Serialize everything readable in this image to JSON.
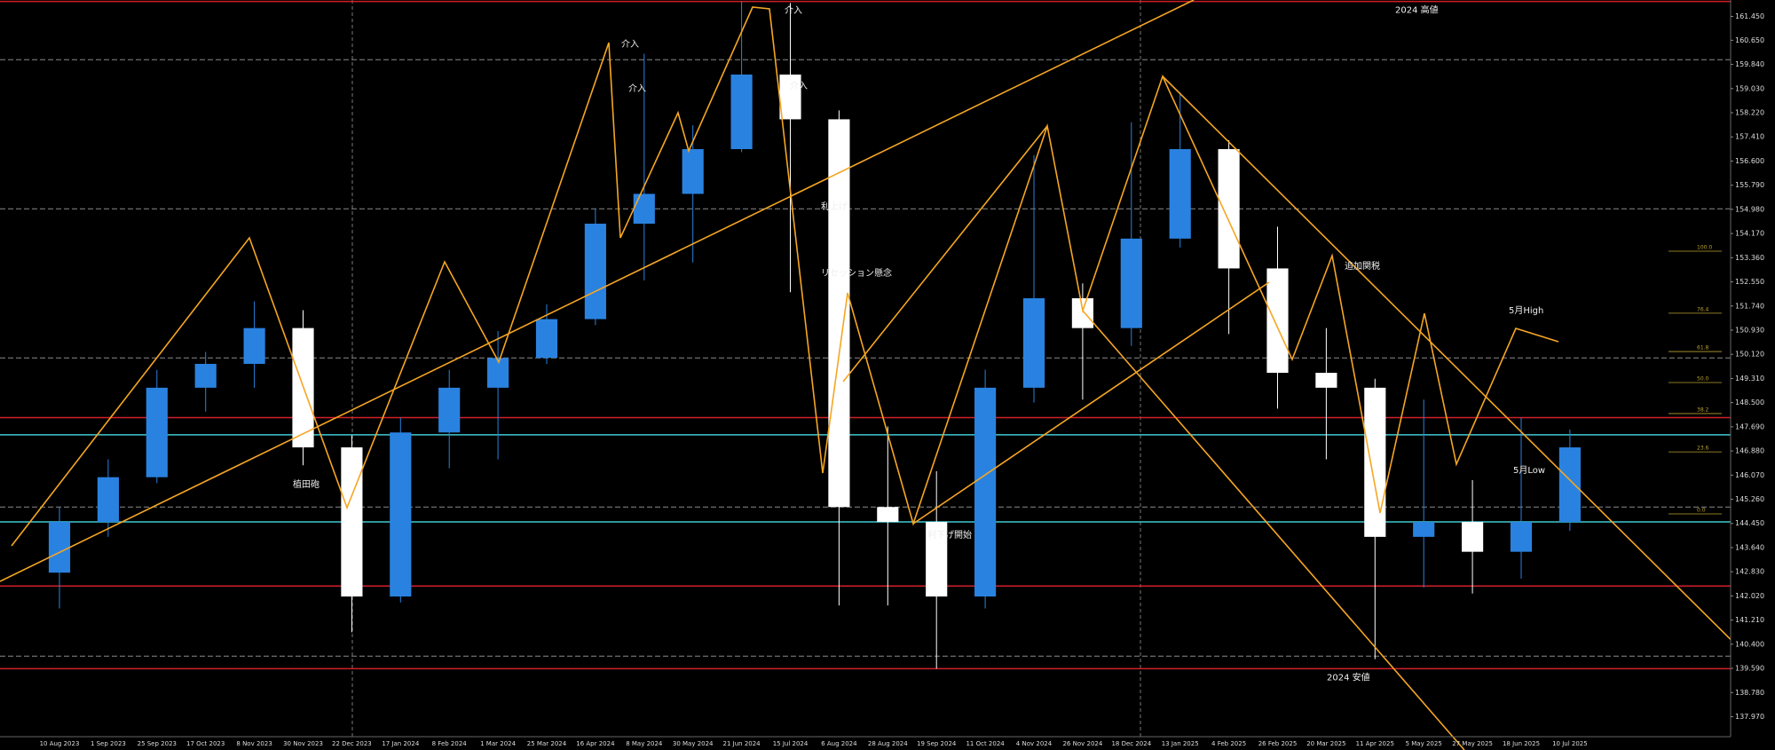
{
  "chart_data": {
    "type": "candlestick",
    "categories": [
      "10 Aug 2023",
      "1 Sep 2023",
      "25 Sep 2023",
      "17 Oct 2023",
      "8 Nov 2023",
      "30 Nov 2023",
      "22 Dec 2023",
      "17 Jan 2024",
      "8 Feb 2024",
      "1 Mar 2024",
      "25 Mar 2024",
      "16 Apr 2024",
      "8 May 2024",
      "30 May 2024",
      "21 Jun 2024",
      "15 Jul 2024",
      "6 Aug 2024",
      "28 Aug 2024",
      "19 Sep 2024",
      "11 Oct 2024",
      "4 Nov 2024",
      "26 Nov 2024",
      "18 Dec 2024",
      "13 Jan 2025",
      "4 Feb 2025",
      "26 Feb 2025",
      "20 Mar 2025",
      "11 Apr 2025",
      "5 May 2025",
      "27 May 2025",
      "18 Jun 2025",
      "10 Jul 2025"
    ],
    "open": [
      142.8,
      144.5,
      146.0,
      149.0,
      149.8,
      151.0,
      147.0,
      142.0,
      147.5,
      149.0,
      150.0,
      151.3,
      154.5,
      155.5,
      157.0,
      159.5,
      158.0,
      145.0,
      144.5,
      142.0,
      149.0,
      152.0,
      151.0,
      154.0,
      157.0,
      153.0,
      149.5,
      149.0,
      144.0,
      144.5,
      143.5,
      144.5
    ],
    "high": [
      145.0,
      146.6,
      149.6,
      150.2,
      151.9,
      151.6,
      147.4,
      148.0,
      149.6,
      150.9,
      151.8,
      155.0,
      160.2,
      157.8,
      161.95,
      161.9,
      158.3,
      147.7,
      146.2,
      149.6,
      156.8,
      152.5,
      157.9,
      158.9,
      157.3,
      154.4,
      151.0,
      149.3,
      148.6,
      145.9,
      148.0,
      147.6
    ],
    "low": [
      141.6,
      144.0,
      145.8,
      148.2,
      149.0,
      146.4,
      140.8,
      141.8,
      146.3,
      146.6,
      149.8,
      151.1,
      152.6,
      153.2,
      156.9,
      152.2,
      141.7,
      141.7,
      139.58,
      141.6,
      148.5,
      148.6,
      150.4,
      153.7,
      150.8,
      148.3,
      146.6,
      139.9,
      142.3,
      142.1,
      142.6,
      144.2
    ],
    "close": [
      144.5,
      146.0,
      149.0,
      149.8,
      151.0,
      147.0,
      142.0,
      147.5,
      149.0,
      150.0,
      151.3,
      154.5,
      155.5,
      157.0,
      159.5,
      158.0,
      145.0,
      144.5,
      142.0,
      149.0,
      152.0,
      151.0,
      154.0,
      157.0,
      153.0,
      149.5,
      149.0,
      144.0,
      144.5,
      143.5,
      144.5,
      147.0
    ],
    "up_color": "#2a82e0",
    "down_color": "#ffffff",
    "ylim": [
      137.3,
      162.0
    ],
    "yticks": [
      {
        "value": 161.45,
        "label": "161.450"
      },
      {
        "value": 160.65,
        "label": "160.650"
      },
      {
        "value": 159.84,
        "label": "159.840"
      },
      {
        "value": 159.03,
        "label": "159.030"
      },
      {
        "value": 158.22,
        "label": "158.220"
      },
      {
        "value": 157.41,
        "label": "157.410"
      },
      {
        "value": 156.6,
        "label": "156.600"
      },
      {
        "value": 155.79,
        "label": "155.790"
      },
      {
        "value": 154.98,
        "label": "154.980"
      },
      {
        "value": 154.17,
        "label": "154.170"
      },
      {
        "value": 153.36,
        "label": "153.360"
      },
      {
        "value": 152.55,
        "label": "152.550"
      },
      {
        "value": 151.74,
        "label": "151.740"
      },
      {
        "value": 150.93,
        "label": "150.930"
      },
      {
        "value": 150.12,
        "label": "150.120"
      },
      {
        "value": 149.31,
        "label": "149.310"
      },
      {
        "value": 148.5,
        "label": "148.500"
      },
      {
        "value": 147.69,
        "label": "147.690"
      },
      {
        "value": 146.88,
        "label": "146.880"
      },
      {
        "value": 146.07,
        "label": "146.070"
      },
      {
        "value": 145.26,
        "label": "145.260"
      },
      {
        "value": 144.45,
        "label": "144.450"
      },
      {
        "value": 143.64,
        "label": "143.640"
      },
      {
        "value": 142.83,
        "label": "142.830"
      },
      {
        "value": 142.02,
        "label": "142.020"
      },
      {
        "value": 141.21,
        "label": "141.210"
      },
      {
        "value": 140.4,
        "label": "140.400"
      },
      {
        "value": 139.59,
        "label": "139.590"
      },
      {
        "value": 138.78,
        "label": "138.780"
      },
      {
        "value": 137.97,
        "label": "137.970"
      }
    ],
    "levels": [
      {
        "name": "2024 高値",
        "value": 161.95,
        "color": "#d0202a",
        "style": "solid"
      },
      {
        "name": "2024 安値",
        "value": 139.58,
        "color": "#d0202a",
        "style": "solid"
      },
      {
        "value": 148.0,
        "color": "#d0202a",
        "style": "solid"
      },
      {
        "value": 147.42,
        "color": "#40c8d0",
        "style": "solid"
      },
      {
        "value": 144.5,
        "color": "#40c8d0",
        "style": "solid"
      },
      {
        "value": 142.35,
        "color": "#d0202a",
        "style": "solid"
      },
      {
        "value": 160,
        "color": "#8a8a8a",
        "style": "dashed"
      },
      {
        "value": 155,
        "color": "#8a8a8a",
        "style": "dashed"
      },
      {
        "value": 150,
        "color": "#8a8a8a",
        "style": "dashed"
      },
      {
        "value": 145,
        "color": "#8a8a8a",
        "style": "dashed"
      },
      {
        "value": 140,
        "color": "#8a8a8a",
        "style": "dashed"
      }
    ],
    "annotations": [
      "介入",
      "介入",
      "介入",
      "介入",
      "利上げ",
      "リセッション懸念",
      "追加関税",
      "利下げ開始",
      "植田砲",
      "5月High",
      "5月Low"
    ],
    "fib_levels": [
      {
        "value": 100,
        "label": "100.0"
      },
      {
        "value": 76.4,
        "label": "76.4"
      },
      {
        "value": 61.8,
        "label": "61.8"
      },
      {
        "value": 50,
        "label": "50.0"
      },
      {
        "value": 38.2,
        "label": "38.2"
      },
      {
        "value": 23.6,
        "label": "23.6"
      },
      {
        "value": 0,
        "label": "0.0"
      }
    ],
    "fib_color": "#b8a030"
  }
}
